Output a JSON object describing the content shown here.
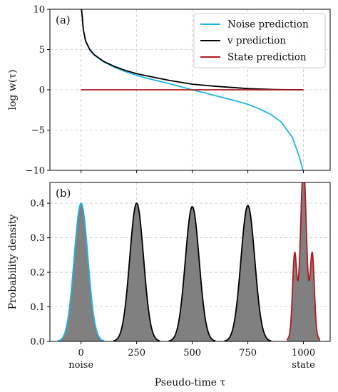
{
  "chart_data": [
    {
      "type": "line",
      "panel_label": "(a)",
      "ylabel": "log w(τ)",
      "xlim": [
        -140,
        1120
      ],
      "ylim": [
        -10,
        10
      ],
      "yticks": [
        10,
        5,
        0,
        -5,
        -10
      ],
      "ytick_labels": [
        "10",
        "5",
        "0",
        "−5",
        "−10"
      ],
      "grid": true,
      "legend_position": "top-right",
      "series": [
        {
          "name": "Noise prediction",
          "color": "#1fb4e8",
          "x": [
            2,
            5,
            10,
            20,
            40,
            60,
            100,
            150,
            200,
            250,
            300,
            400,
            500,
            600,
            700,
            750,
            800,
            850,
            900,
            950,
            980,
            995,
            998
          ],
          "y": [
            10,
            9.2,
            7.5,
            6.1,
            4.9,
            4.3,
            3.5,
            2.8,
            2.25,
            1.8,
            1.4,
            0.75,
            0.0,
            -0.7,
            -1.4,
            -1.8,
            -2.35,
            -3.0,
            -4.0,
            -5.9,
            -8.2,
            -9.7,
            -10
          ]
        },
        {
          "name": "v prediction",
          "color": "#000000",
          "x": [
            2,
            5,
            10,
            20,
            40,
            60,
            100,
            150,
            200,
            250,
            300,
            400,
            500,
            600,
            700,
            750,
            800,
            850,
            900,
            950,
            1000
          ],
          "y": [
            10,
            9.2,
            7.5,
            6.1,
            4.95,
            4.35,
            3.55,
            2.9,
            2.4,
            2.0,
            1.7,
            1.15,
            0.7,
            0.45,
            0.25,
            0.15,
            0.1,
            0.05,
            0.02,
            0.01,
            0.0
          ]
        },
        {
          "name": "State prediction",
          "color": "#b0191f",
          "x": [
            0,
            1000
          ],
          "y": [
            0,
            0
          ]
        }
      ]
    },
    {
      "type": "area",
      "panel_label": "(b)",
      "ylabel": "Probability density",
      "xlabel": "Pseudo-time τ",
      "xlim": [
        -140,
        1120
      ],
      "ylim": [
        0,
        0.46
      ],
      "yticks": [
        0.0,
        0.1,
        0.2,
        0.3,
        0.4
      ],
      "ytick_labels": [
        "0.0",
        "0.1",
        "0.2",
        "0.3",
        "0.4"
      ],
      "xticks": [
        0,
        250,
        500,
        750,
        1000
      ],
      "xtick_labels": [
        "0",
        "250",
        "500",
        "750",
        "1000"
      ],
      "xtick_sublabels": {
        "0": "noise",
        "1000": "state"
      },
      "grid": true,
      "fill_color": "#808080",
      "series": [
        {
          "center": 0,
          "peak": 0.4,
          "sigma": 31,
          "line_color": "#1fb4e8",
          "shape": "gaussian"
        },
        {
          "center": 250,
          "peak": 0.4,
          "sigma": 31,
          "line_color": "#000000",
          "shape": "gaussian"
        },
        {
          "center": 500,
          "peak": 0.39,
          "sigma": 31,
          "line_color": "#000000",
          "shape": "gaussian"
        },
        {
          "center": 750,
          "peak": 0.393,
          "sigma": 31,
          "line_color": "#000000",
          "shape": "gaussian"
        },
        {
          "center": 1000,
          "peak": 0.4,
          "sigma": 12,
          "side_peak": 0.21,
          "side_offset": 40,
          "line_color": "#b0191f",
          "shape": "trimodal"
        }
      ]
    }
  ]
}
